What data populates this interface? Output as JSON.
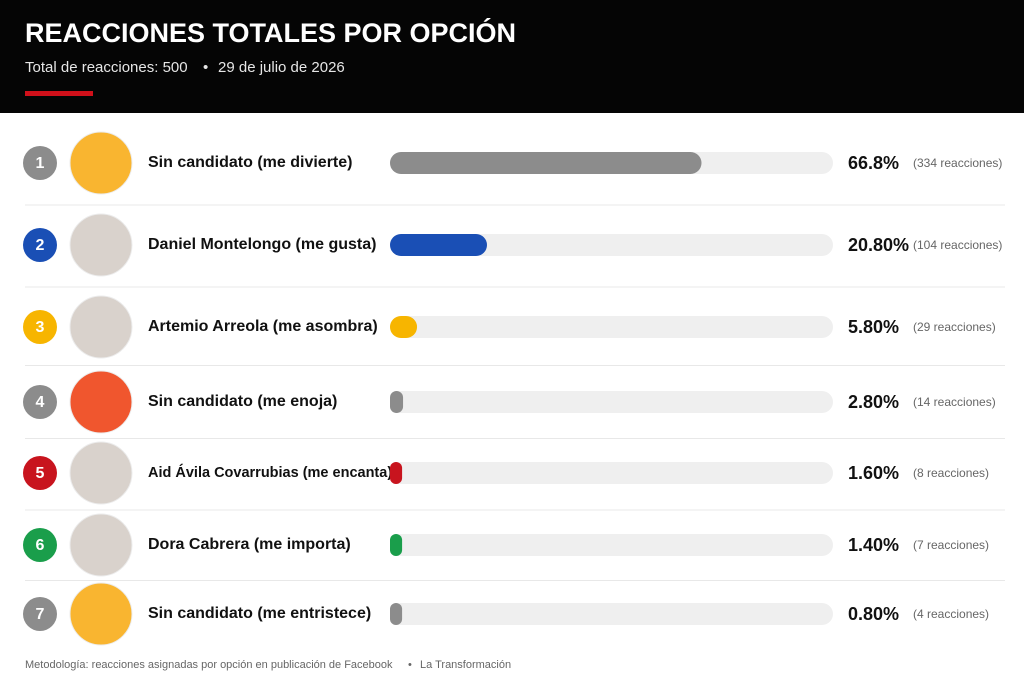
{
  "chart_data": {
    "type": "bar",
    "title": "REACCIONES TOTALES POR OPCIÓN",
    "subtitle": "Total de reacciones: 500",
    "date": "29 de julio de 2026",
    "ranks": [
      "1",
      "2",
      "3",
      "4",
      "5",
      "6",
      "7"
    ],
    "categories": [
      "Sin candidato (me divierte)",
      "Daniel Montelongo (me gusta)",
      "Artemio Arreola (me asombra)",
      "Sin candidato (me enoja)",
      "Aid Ávila Covarrubias (me encanta)",
      "Dora Cabrera (me importa)",
      "Sin candidato (me entristece)"
    ],
    "values": [
      66.8,
      20.8,
      5.8,
      2.8,
      1.6,
      1.4,
      0.8
    ],
    "value_labels": [
      "66.8%",
      "20.80%",
      "5.80%",
      "2.80%",
      "1.60%",
      "1.40%",
      "0.80%"
    ],
    "reaction_labels": [
      "(334 reacciones)",
      "(104 reacciones)",
      "(29 reacciones)",
      "(14 reacciones)",
      "(8 reacciones)",
      "(7 reacciones)",
      "(4 reacciones)"
    ],
    "colors": [
      "#8c8c8c",
      "#1a4fb5",
      "#f7b500",
      "#8c8c8c",
      "#c8141e",
      "#1a9e4b",
      "#8c8c8c"
    ],
    "xlim": [
      0,
      95
    ],
    "source_note": "Metodología: reacciones asignadas por opción en publicación de Facebook",
    "publisher": "La Transformación"
  }
}
